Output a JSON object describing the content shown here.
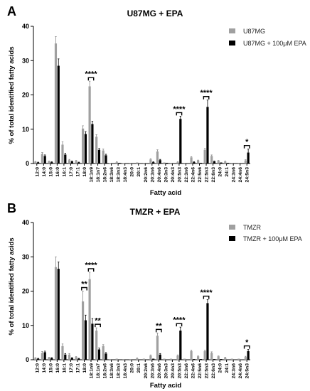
{
  "chart_data": [
    {
      "type": "bar",
      "panel": "A",
      "title": "U87MG + EPA",
      "xlabel": "Fatty acid",
      "ylabel": "% of total identified fatty acids",
      "ylim": [
        0,
        40
      ],
      "yticks": [
        0,
        10,
        20,
        30,
        40
      ],
      "grid": false,
      "legend_position": "top-right",
      "colors": {
        "control": "#a0a0a0",
        "treated": "#000000"
      },
      "categories": [
        "12:0",
        "14:0",
        "15:0",
        "16:0",
        "16:1",
        "17:0",
        "17:1",
        "18:0",
        "18:1n9",
        "18:1n7",
        "18:2n6",
        "18:3n6",
        "18:3n3",
        "18:4n3",
        "20:0",
        "20:1",
        "20:2n6",
        "20:3n6",
        "20:4n6",
        "20:3n3",
        "20:4n3",
        "20:5n3",
        "22:3n6",
        "22:4n6",
        "22:5n6",
        "22:5n3",
        "22:6n3",
        "24:0",
        "24:1",
        "24:3n6",
        "24:4n6",
        "24:5n3"
      ],
      "series": [
        {
          "name": "U87MG",
          "values": [
            0.5,
            2.8,
            0.6,
            35,
            5.5,
            1.0,
            0.8,
            10.2,
            22.5,
            7.8,
            3.8,
            0.1,
            0.4,
            0.1,
            0.2,
            0.3,
            0.2,
            1.2,
            3.5,
            0.3,
            0.2,
            0.4,
            0.2,
            1.8,
            0.9,
            4.0,
            2.2,
            0.8,
            0.6,
            0.2,
            0.2,
            0.9
          ],
          "errors": [
            0.1,
            0.4,
            0.1,
            2,
            0.8,
            0.2,
            0.1,
            0.8,
            1.5,
            0.6,
            0.4,
            0.05,
            0.1,
            0.05,
            0.05,
            0.05,
            0.05,
            0.2,
            0.5,
            0.05,
            0.05,
            0.1,
            0.05,
            0.2,
            0.1,
            0.4,
            0.3,
            0.1,
            0.1,
            0.05,
            0.05,
            0.2
          ]
        },
        {
          "name": "U87MG + 100μM EPA",
          "values": [
            0.3,
            2.2,
            0.4,
            28.5,
            2.6,
            0.6,
            0.3,
            8.6,
            11.5,
            4.0,
            2.4,
            0.1,
            0.2,
            0.1,
            0.1,
            0.1,
            0.1,
            0.4,
            1.0,
            0.2,
            0.1,
            13.0,
            0.1,
            0.4,
            0.2,
            16.5,
            0.6,
            0.3,
            0.2,
            0.1,
            0.1,
            3.2
          ],
          "errors": [
            0.1,
            0.3,
            0.1,
            2,
            0.4,
            0.1,
            0.1,
            0.7,
            0.8,
            0.4,
            0.3,
            0.05,
            0.05,
            0.05,
            0.05,
            0.05,
            0.05,
            0.1,
            0.2,
            0.05,
            0.05,
            0.8,
            0.05,
            0.1,
            0.05,
            2.0,
            0.1,
            0.05,
            0.05,
            0.05,
            0.05,
            1.0
          ]
        }
      ],
      "annotations": [
        {
          "category_index": 8,
          "text": "****"
        },
        {
          "category_index": 21,
          "text": "****"
        },
        {
          "category_index": 25,
          "text": "****"
        },
        {
          "category_index": 31,
          "text": "*"
        }
      ]
    },
    {
      "type": "bar",
      "panel": "B",
      "title": "TMZR + EPA",
      "xlabel": "Fatty acid",
      "ylabel": "% of total identified fatty acids",
      "ylim": [
        0,
        40
      ],
      "yticks": [
        0,
        10,
        20,
        30,
        40
      ],
      "grid": false,
      "legend_position": "top-right",
      "colors": {
        "control": "#a0a0a0",
        "treated": "#000000"
      },
      "categories": [
        "12:0",
        "14:0",
        "15:0",
        "16:0",
        "16:1",
        "17:0",
        "17:1",
        "18:0",
        "18:1n9",
        "18:1n7",
        "18:2n6",
        "18:3n6",
        "18:3n3",
        "18:4n3",
        "20:0",
        "20:1",
        "20:2n6",
        "20:3n6",
        "20:4n6",
        "20:3n3",
        "20:4n3",
        "20:5n3",
        "22:3n6",
        "22:4n6",
        "22:5n6",
        "22:5n3",
        "22:6n3",
        "24:0",
        "24:1",
        "24:3n6",
        "24:4n6",
        "24:5n3"
      ],
      "series": [
        {
          "name": "TMZR",
          "values": [
            0.5,
            2.0,
            0.6,
            27,
            4.0,
            1.5,
            0.8,
            17.0,
            23.5,
            8.5,
            4.0,
            0.2,
            0.3,
            0.2,
            0.2,
            0.4,
            0.3,
            1.2,
            7.0,
            0.3,
            0.3,
            1.2,
            0.3,
            2.5,
            1.0,
            2.5,
            2.0,
            1.0,
            0.6,
            0.3,
            0.3,
            0.8
          ],
          "errors": [
            0.1,
            0.4,
            0.1,
            3,
            0.6,
            0.3,
            0.1,
            3.0,
            2.0,
            0.8,
            0.4,
            0.05,
            0.05,
            0.05,
            0.05,
            0.1,
            0.05,
            0.2,
            0.8,
            0.05,
            0.05,
            0.2,
            0.05,
            0.3,
            0.1,
            0.3,
            0.3,
            0.1,
            0.1,
            0.05,
            0.05,
            0.2
          ]
        },
        {
          "name": "TMZR + 100μM EPA",
          "values": [
            0.3,
            2.2,
            0.5,
            26.5,
            1.5,
            0.5,
            0.3,
            11.5,
            10.5,
            3.0,
            1.8,
            0.1,
            0.1,
            0.1,
            0.1,
            0.1,
            0.1,
            0.3,
            1.5,
            0.1,
            0.1,
            8.5,
            0.1,
            0.2,
            0.2,
            16.5,
            0.2,
            0.2,
            0.1,
            0.1,
            0.1,
            2.5
          ],
          "errors": [
            0.1,
            0.3,
            0.1,
            2,
            0.3,
            0.1,
            0.1,
            1.5,
            1.5,
            0.4,
            0.3,
            0.05,
            0.05,
            0.05,
            0.05,
            0.05,
            0.05,
            0.05,
            0.3,
            0.05,
            0.05,
            1.0,
            0.05,
            0.05,
            0.05,
            1.0,
            0.05,
            0.05,
            0.05,
            0.05,
            0.05,
            0.5
          ]
        }
      ],
      "annotations": [
        {
          "category_index": 7,
          "text": "**"
        },
        {
          "category_index": 8,
          "text": "****"
        },
        {
          "category_index": 9,
          "text": "**"
        },
        {
          "category_index": 18,
          "text": "**"
        },
        {
          "category_index": 21,
          "text": "****"
        },
        {
          "category_index": 25,
          "text": "****"
        },
        {
          "category_index": 31,
          "text": "*"
        }
      ]
    }
  ]
}
